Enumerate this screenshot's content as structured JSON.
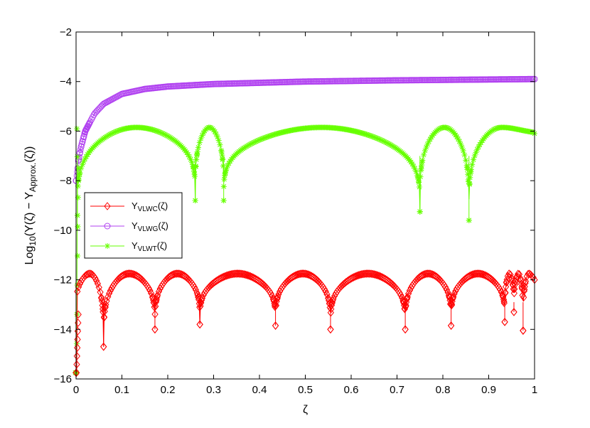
{
  "chart_data": {
    "type": "line",
    "xlabel": "ζ",
    "ylabel": {
      "prefix": "Log",
      "prefix_sub": "10",
      "main": "(Y(ζ) − Y",
      "sub": "Approx.",
      "suffix": "(ζ))"
    },
    "xlim": [
      0,
      1
    ],
    "ylim": [
      -16,
      -2
    ],
    "xticks": [
      0,
      0.1,
      0.2,
      0.3,
      0.4,
      0.5,
      0.6,
      0.7,
      0.8,
      0.9,
      1
    ],
    "xtick_labels": [
      "0",
      "0.1",
      "0.2",
      "0.3",
      "0.4",
      "0.5",
      "0.6",
      "0.7",
      "0.8",
      "0.9",
      "1"
    ],
    "yticks": [
      -16,
      -14,
      -12,
      -10,
      -8,
      -6,
      -4,
      -2
    ],
    "ytick_labels": [
      "−16",
      "−14",
      "−12",
      "−10",
      "−8",
      "−6",
      "−4",
      "−2"
    ],
    "grid": false,
    "legend_position": "center-left",
    "series": [
      {
        "name": "Y",
        "name_sub": "VLWC",
        "name_suffix": "(ζ)",
        "color": "#ff0000",
        "marker": "diamond",
        "kind": "oscillating-dips",
        "base": -11.9,
        "start_value": -15.75,
        "dips": [
          {
            "x": 0.06,
            "y": -14.7
          },
          {
            "x": 0.172,
            "y": -14.0
          },
          {
            "x": 0.27,
            "y": -13.8
          },
          {
            "x": 0.435,
            "y": -13.85
          },
          {
            "x": 0.555,
            "y": -14.0
          },
          {
            "x": 0.718,
            "y": -14.0
          },
          {
            "x": 0.818,
            "y": -13.85
          },
          {
            "x": 0.935,
            "y": -13.7
          },
          {
            "x": 0.955,
            "y": -13.3
          },
          {
            "x": 0.975,
            "y": -14.05
          }
        ],
        "end_value": -12.0
      },
      {
        "name": "Y",
        "name_sub": "VLWG",
        "name_suffix": "(ζ)",
        "color": "#b040f0",
        "marker": "circle",
        "kind": "saturating",
        "points": [
          {
            "x": 0.001,
            "y": -8.0
          },
          {
            "x": 0.005,
            "y": -7.2
          },
          {
            "x": 0.01,
            "y": -6.7
          },
          {
            "x": 0.02,
            "y": -6.0
          },
          {
            "x": 0.04,
            "y": -5.3
          },
          {
            "x": 0.06,
            "y": -4.9
          },
          {
            "x": 0.1,
            "y": -4.5
          },
          {
            "x": 0.15,
            "y": -4.3
          },
          {
            "x": 0.2,
            "y": -4.2
          },
          {
            "x": 0.3,
            "y": -4.1
          },
          {
            "x": 0.5,
            "y": -4.0
          },
          {
            "x": 0.7,
            "y": -3.95
          },
          {
            "x": 1.0,
            "y": -3.9
          }
        ]
      },
      {
        "name": "Y",
        "name_sub": "VLWT",
        "name_suffix": "(ζ)",
        "color": "#66ff00",
        "marker": "asterisk",
        "kind": "oscillating-dips",
        "base": -6.0,
        "start_value": -15.75,
        "dips": [
          {
            "x": 0.003,
            "y": -9.4
          },
          {
            "x": 0.26,
            "y": -8.8
          },
          {
            "x": 0.322,
            "y": -8.8
          },
          {
            "x": 0.75,
            "y": -9.25
          },
          {
            "x": 0.857,
            "y": -9.6
          }
        ],
        "end_value": -6.1
      }
    ]
  }
}
